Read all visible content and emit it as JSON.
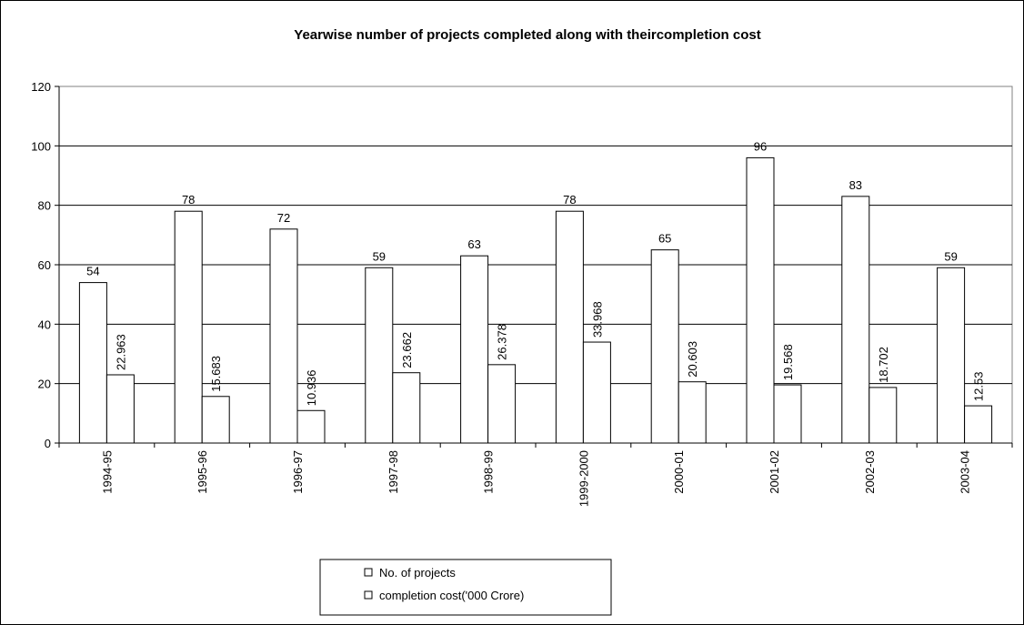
{
  "chart_data": {
    "type": "bar",
    "title": "Yearwise number of projects completed along with theircompletion cost",
    "categories": [
      "1994-95",
      "1995-96",
      "1996-97",
      "1997-98",
      "1998-99",
      "1999-2000",
      "2000-01",
      "2001-02",
      "2002-03",
      "2003-04"
    ],
    "series": [
      {
        "name": "No. of projects",
        "color": "#ffffff",
        "values": [
          54,
          78,
          72,
          59,
          63,
          78,
          65,
          96,
          83,
          59
        ]
      },
      {
        "name": "completion cost('000 Crore)",
        "color": "#ffffff",
        "values": [
          22.963,
          15.683,
          10.936,
          23.662,
          26.378,
          33.968,
          20.603,
          19.568,
          18.702,
          12.53
        ]
      }
    ],
    "ylim": [
      0,
      120
    ],
    "yticks": [
      0,
      20,
      40,
      60,
      80,
      100,
      120
    ],
    "grid": true,
    "legend": "bottom"
  }
}
